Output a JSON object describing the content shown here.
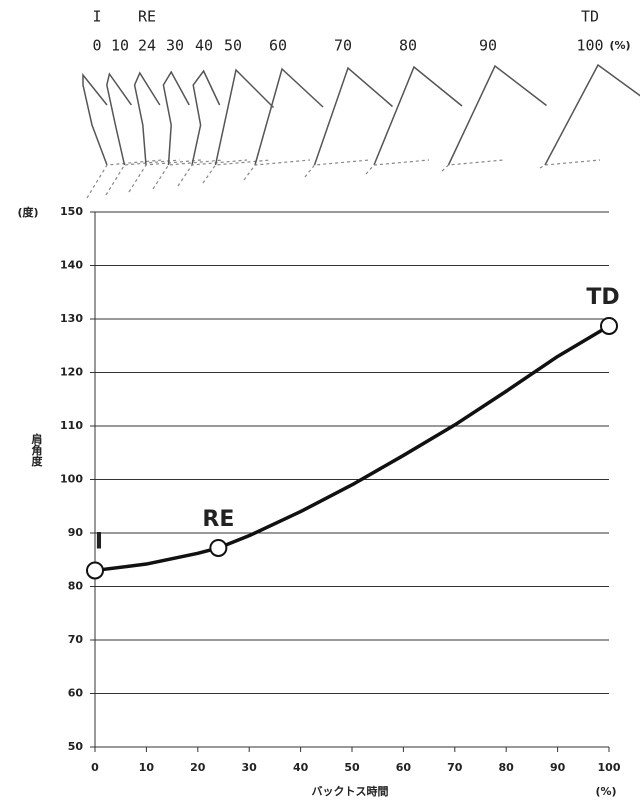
{
  "chart_data": {
    "type": "line",
    "frames": [
      0,
      10,
      24,
      30,
      40,
      50,
      60,
      70,
      80,
      90,
      100
    ],
    "frame_phases": [
      "I",
      null,
      "RE",
      null,
      null,
      null,
      null,
      null,
      null,
      null,
      "TD"
    ],
    "frames_unit": "(%)",
    "y_unit": "(度)",
    "y_label": "肩角度",
    "x_label": "バックトス時間",
    "x_unit": "(%)",
    "x": [
      0,
      10,
      20,
      24,
      30,
      40,
      50,
      60,
      70,
      80,
      90,
      100
    ],
    "series": [
      {
        "name": "肩角度",
        "color": "#111111",
        "values": [
          83,
          84.2,
          86.2,
          87.2,
          89.5,
          94,
          99,
          104.5,
          110.2,
          116.5,
          123,
          128.7
        ]
      }
    ],
    "markers": [
      {
        "label": "I",
        "x": 0,
        "y": 83
      },
      {
        "label": "RE",
        "x": 24,
        "y": 87.2
      },
      {
        "label": "TD",
        "x": 100,
        "y": 128.7
      }
    ],
    "xlim": [
      0,
      100
    ],
    "xticks": [
      0,
      10,
      20,
      30,
      40,
      50,
      60,
      70,
      80,
      90,
      100
    ],
    "ylim": [
      50,
      150
    ],
    "yticks": [
      50,
      60,
      70,
      80,
      90,
      100,
      110,
      120,
      130,
      140,
      150
    ],
    "grid": true
  }
}
